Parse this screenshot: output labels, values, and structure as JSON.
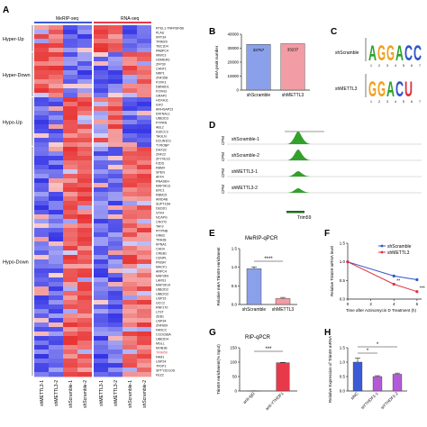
{
  "panel_labels": [
    "A",
    "B",
    "C",
    "D",
    "E",
    "F",
    "G",
    "H"
  ],
  "colors": {
    "blue": "#3d5ad6",
    "red": "#e8394b",
    "light_blue": "#8aa0ea",
    "pink": "#f29ca5",
    "green": "#33a02c",
    "dark_blue_line": "#2f55c8",
    "red_line": "#e03040"
  },
  "heatmap": {
    "header_left": "MeRIP-seq",
    "header_right": "RNA-seq",
    "groups": [
      "Hyper-Up",
      "Hyper-Down",
      "Hypo-Up",
      "Hypo-Down"
    ],
    "columns": [
      "shMETTL3-1",
      "shMETTL3-2",
      "shScramble-1",
      "shScramble-2",
      "shMETTL3-1",
      "shMETTL3-2",
      "shScramble-1",
      "shScramble-2"
    ],
    "genes": [
      "RTEL1-TNFRSF6B",
      "PLAU",
      "KRT34",
      "TRIM29",
      "TBC1D4",
      "PABPC4",
      "WWC3",
      "HOMER3",
      "ZFP30",
      "CANT1",
      "NRP1",
      "ZNF358",
      "FOXK1",
      "DBNDD1",
      "FOXN3",
      "GRAP2",
      "HOXA11",
      "IGF2",
      "ARHGAP23",
      "KATNAL1",
      "UBE2D3",
      "PTPRN",
      "ABL2",
      "IGDCC3",
      "TAGLN",
      "DCUN1D1",
      "TYROBP",
      "DHX33",
      "ZNF22",
      "ZFYVE16",
      "FZD5",
      "RBMX",
      "SPEN",
      "AFF4",
      "RNASEH",
      "MAP3K13",
      "ERC1",
      "RBM15",
      "ARID4B",
      "SUPT16H",
      "DEDD1",
      "STK4",
      "NCAPG",
      "CNOT2",
      "TAF3",
      "PITPNB",
      "GNB3",
      "TRA2B",
      "KPNA1",
      "CHD4",
      "CREB1",
      "CENPL",
      "PNISR",
      "MACF1",
      "ARPC4",
      "MAP3K9",
      "LARS1",
      "MAP3K14",
      "UBE2D2",
      "UBE2G2",
      "USP15",
      "GCC2",
      "RNF170",
      "LYST",
      "ZEB1",
      "USP34",
      "ZNF609",
      "FANCC",
      "CCDC88A",
      "UBE2D4",
      "MGLL",
      "MOB1B",
      "TRIM59",
      "FAM1",
      "USP24",
      "TFDP1",
      "SPTY2D1OS",
      "FEZ2"
    ],
    "highlight_gene": "TRIM59",
    "highlight_color": "#e8394b"
  },
  "panel_B": {
    "chart_data": {
      "type": "bar",
      "categories": [
        "shScramble",
        "shMETTL3"
      ],
      "values": [
        32767,
        33237
      ],
      "ylabel": "m6A peak number",
      "ylim": [
        0,
        40000
      ],
      "yticks": [
        "0",
        "10000",
        "20000",
        "30000",
        "40000"
      ],
      "bar_labels": [
        "32767",
        "33237"
      ],
      "colors": [
        "#8aa0ea",
        "#f29ca5"
      ]
    }
  },
  "panel_C": {
    "rows": [
      {
        "label": "shScramble",
        "letters": [
          "A",
          "G",
          "G",
          "A",
          "C",
          "C"
        ],
        "letter_colors": [
          "#2ca02c",
          "#f0a020",
          "#f0a020",
          "#2ca02c",
          "#2f55c8",
          "#2f55c8"
        ]
      },
      {
        "label": "shMETTL3",
        "letters": [
          "G",
          "G",
          "A",
          "C",
          "U"
        ],
        "letter_colors": [
          "#f0a020",
          "#f0a020",
          "#2ca02c",
          "#2f55c8",
          "#e03040"
        ]
      }
    ],
    "positions": [
      "1",
      "2",
      "3",
      "4",
      "5",
      "6",
      "7"
    ]
  },
  "panel_D": {
    "tracks": [
      "shScramble-1",
      "shScramble-2",
      "shMETTL3-1",
      "shMETTL3-2"
    ],
    "axis_label": "CPM",
    "gene": "Trim59"
  },
  "panel_E": {
    "title": "MeRIP-qPCR",
    "chart_data": {
      "type": "bar",
      "categories": [
        "shScramble",
        "shMETTL3"
      ],
      "values": [
        0.96,
        0.16
      ],
      "errors": [
        0.05,
        0.03
      ],
      "ylabel": "Relative m6A Trim59 enrichment",
      "ylim": [
        0,
        1.5
      ],
      "yticks": [
        "0.0",
        "0.5",
        "1.0",
        "1.5"
      ],
      "significance": "****",
      "colors": [
        "#8aa0ea",
        "#f29ca5"
      ]
    }
  },
  "panel_F": {
    "chart_data": {
      "type": "line",
      "x": [
        0,
        4,
        6
      ],
      "xticks": [
        "0",
        "2",
        "4",
        "6"
      ],
      "xlim": [
        0,
        6.4
      ],
      "ylim": [
        0,
        1.5
      ],
      "yticks": [
        "0.0",
        "0.5",
        "1.0",
        "1.5"
      ],
      "series": [
        {
          "name": "shScramble",
          "values": [
            1.0,
            0.62,
            0.52
          ],
          "color": "#2f55c8"
        },
        {
          "name": "shMETTL3",
          "values": [
            1.0,
            0.4,
            0.2
          ],
          "color": "#e03040"
        }
      ],
      "significance": [
        "**",
        "***"
      ],
      "xlabel": "Time after Actinomycin D Treatment (h)",
      "ylabel": "Relative Trim59 mRNA level"
    }
  },
  "panel_G": {
    "title": "RIP-qPCR",
    "chart_data": {
      "type": "bar",
      "categories": [
        "anti-IgG",
        "anti-YTHDF1"
      ],
      "values": [
        0.3,
        98
      ],
      "errors": [
        0.2,
        1.2
      ],
      "ylabel": "Trim59 enrichment(% Input)",
      "ylim": [
        0,
        150
      ],
      "yticks": [
        "0",
        "50",
        "100",
        "150"
      ],
      "significance": "***",
      "colors": [
        "#8aa0ea",
        "#e8394b"
      ]
    }
  },
  "panel_H": {
    "chart_data": {
      "type": "bar",
      "categories": [
        "siNC",
        "siYTHDF1-1",
        "siYTHDF1-2"
      ],
      "values": [
        1.0,
        0.5,
        0.58
      ],
      "errors": [
        0.14,
        0.03,
        0.04
      ],
      "ylabel": "Relative Expression of Trim59 mRNA",
      "ylim": [
        0,
        1.5
      ],
      "yticks": [
        "0.0",
        "0.5",
        "1.0",
        "1.5"
      ],
      "significance": [
        "*",
        "*"
      ],
      "colors": [
        "#3d5ad6",
        "#b45ad8",
        "#b45ad8"
      ]
    }
  }
}
